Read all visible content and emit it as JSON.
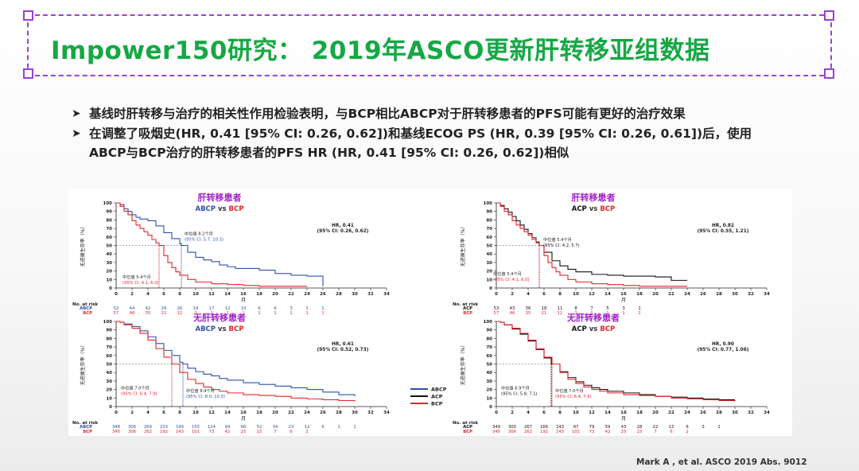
{
  "slide": {
    "title": "Impower150研究： 2019年ASCO更新肝转移亚组数据",
    "bullets": [
      "基线时肝转移与治疗的相关性作用检验表明，与BCP相比ABCP对于肝转移患者的PFS可能有更好的治疗效果",
      "在调整了吸烟史(HR, 0.41 [95% CI: 0.26, 0.62])和基线ECOG PS (HR, 0.39 [95% CI: 0.26, 0.61])后，使用",
      "ABCP与BCP治疗的肝转移患者的PFS HR (HR, 0.41 [95% CI: 0.26, 0.62])相似"
    ],
    "citation": "Mark A , et al.  ASCO 2019 Abs. 9012",
    "colors": {
      "title": "#15a844",
      "frame": "#9b3fd0",
      "abcp": "#2f4fb0",
      "bcp": "#e8242b",
      "acp": "#111111",
      "panel_title": "#a020c8"
    }
  },
  "legend": [
    {
      "name": "ABCP",
      "color": "#2f4fb0"
    },
    {
      "name": "ACP",
      "color": "#111111"
    },
    {
      "name": "BCP",
      "color": "#e8242b"
    }
  ],
  "chart_data": [
    {
      "type": "line",
      "title": "肝转移患者",
      "subtitle": {
        "a": "ABCP",
        "vs": "vs",
        "b": "BCP"
      },
      "xlabel": "月",
      "ylabel": "无进展生存率（%）",
      "xlim": [
        0,
        34
      ],
      "ylim": [
        0,
        100
      ],
      "xticks": [
        0,
        2,
        4,
        6,
        8,
        10,
        12,
        14,
        16,
        18,
        20,
        22,
        24,
        26,
        28,
        30,
        32,
        34
      ],
      "yticks": [
        0,
        10,
        20,
        30,
        40,
        50,
        60,
        70,
        80,
        90,
        100
      ],
      "hr_text": "HR, 0.41",
      "ci_text": "(95% CI: 0.26, 0.62)",
      "annotations": [
        {
          "lines": [
            "中位值 8.2个月",
            "(95% CI: 5.7, 10.3)"
          ],
          "color": "#2f4fb0",
          "x": 8.2
        },
        {
          "lines": [
            "中位值 5.4个月",
            "(95% CI: 4.1, 6.0)"
          ],
          "color": "#e8242b",
          "x": 5.4
        }
      ],
      "series": [
        {
          "name": "ABCP",
          "color": "#2f4fb0",
          "x": [
            0,
            0.5,
            1,
            1.5,
            2,
            2.5,
            3,
            4,
            5,
            6,
            7,
            8,
            8.2,
            9,
            10,
            11,
            12,
            13,
            14,
            15,
            16,
            18,
            20,
            22,
            24,
            25,
            26
          ],
          "y": [
            100,
            98,
            93,
            90,
            86,
            83,
            81,
            79,
            73,
            65,
            58,
            52,
            50,
            42,
            36,
            33,
            31,
            27,
            25,
            23,
            23,
            21,
            17,
            15,
            14,
            14,
            2
          ]
        },
        {
          "name": "BCP",
          "color": "#e8242b",
          "x": [
            0,
            0.5,
            1,
            1.5,
            2,
            2.5,
            3,
            3.5,
            4,
            4.5,
            5,
            5.4,
            6,
            6.5,
            7,
            7.5,
            8,
            9,
            10,
            12,
            14,
            16,
            18,
            20,
            24
          ],
          "y": [
            100,
            96,
            90,
            86,
            79,
            74,
            70,
            66,
            62,
            57,
            53,
            50,
            38,
            30,
            24,
            19,
            15,
            10,
            7,
            5,
            4,
            3,
            2,
            2,
            2
          ]
        }
      ],
      "risk": {
        "label": "No. at risk",
        "rows": [
          {
            "name": "ABCP",
            "color": "#2f4fb0",
            "values": [
              "52",
              "44",
              "42",
              "29",
              "26",
              "19",
              "17",
              "12",
              "10",
              "6",
              "6",
              "3",
              "1",
              "1"
            ]
          },
          {
            "name": "BCP",
            "color": "#e8242b",
            "values": [
              "57",
              "46",
              "35",
              "21",
              "11",
              "3",
              "1",
              "1",
              "1",
              "1",
              "1",
              "1",
              "1",
              "1"
            ]
          }
        ]
      }
    },
    {
      "type": "line",
      "title": "肝转移患者",
      "subtitle": {
        "a": "ACP",
        "vs": "vs",
        "b": "BCP"
      },
      "xlabel": "月",
      "ylabel": "无进展生存率（%）",
      "xlim": [
        0,
        34
      ],
      "ylim": [
        0,
        100
      ],
      "xticks": [
        0,
        2,
        4,
        6,
        8,
        10,
        12,
        14,
        16,
        18,
        20,
        22,
        24,
        26,
        28,
        30,
        32,
        34
      ],
      "yticks": [
        0,
        10,
        20,
        30,
        40,
        50,
        60,
        70,
        80,
        90,
        100
      ],
      "hr_text": "HR, 0.82",
      "ci_text": "(95% CI: 0.55, 1.21)",
      "annotations": [
        {
          "lines": [
            "中位值 5.4个月",
            "(95% CI: 4.2, 5.7)"
          ],
          "color": "#111111",
          "x": 5.4
        },
        {
          "lines": [
            "中位值 5.4个月",
            "(95% CI: 4.1, 6.0)"
          ],
          "color": "#e8242b",
          "x": 5.4
        }
      ],
      "series": [
        {
          "name": "ACP",
          "color": "#111111",
          "x": [
            0,
            0.5,
            1,
            1.5,
            2,
            2.5,
            3,
            3.5,
            4,
            4.5,
            5,
            5.4,
            6,
            7,
            8,
            9,
            10,
            12,
            14,
            16,
            18,
            20,
            22,
            24
          ],
          "y": [
            100,
            97,
            93,
            89,
            84,
            79,
            74,
            69,
            64,
            59,
            54,
            50,
            42,
            32,
            26,
            22,
            19,
            16,
            15,
            14,
            14,
            13,
            9,
            9
          ]
        },
        {
          "name": "BCP",
          "color": "#e8242b",
          "x": [
            0,
            0.5,
            1,
            1.5,
            2,
            2.5,
            3,
            3.5,
            4,
            4.5,
            5,
            5.4,
            6,
            6.5,
            7,
            7.5,
            8,
            9,
            10,
            12,
            14,
            16,
            18,
            20,
            24
          ],
          "y": [
            100,
            96,
            90,
            86,
            79,
            74,
            70,
            66,
            62,
            57,
            53,
            50,
            38,
            30,
            24,
            19,
            15,
            10,
            7,
            5,
            4,
            3,
            2,
            2,
            2
          ]
        }
      ],
      "risk": {
        "label": "No. at risk",
        "rows": [
          {
            "name": "ACP",
            "color": "#111111",
            "values": [
              "53",
              "43",
              "36",
              "18",
              "11",
              "8",
              "7",
              "5",
              "3",
              "1"
            ]
          },
          {
            "name": "BCP",
            "color": "#e8242b",
            "values": [
              "57",
              "46",
              "35",
              "21",
              "11",
              "3",
              "1",
              "1",
              "1",
              "1"
            ]
          }
        ]
      }
    },
    {
      "type": "line",
      "title": "无肝转移患者",
      "subtitle": {
        "a": "ABCP",
        "vs": "vs",
        "b": "BCP"
      },
      "xlabel": "月",
      "ylabel": "无进展生存率（%）",
      "xlim": [
        0,
        34
      ],
      "ylim": [
        0,
        100
      ],
      "xticks": [
        0,
        2,
        4,
        6,
        8,
        10,
        12,
        14,
        16,
        18,
        20,
        22,
        24,
        26,
        28,
        30,
        32,
        34
      ],
      "yticks": [
        0,
        10,
        20,
        30,
        40,
        50,
        60,
        70,
        80,
        90,
        100
      ],
      "hr_text": "HR, 0.61",
      "ci_text": "(95% CI: 0.52, 0.73)",
      "annotations": [
        {
          "lines": [
            "中位值 7.0个月",
            "(95% CI: 6.4, 7.9)"
          ],
          "color": "#e8242b",
          "x": 7.0
        },
        {
          "lines": [
            "中位值 8.4个月",
            "(95% CI: 8.0, 10.3)"
          ],
          "color": "#2f4fb0",
          "x": 8.4
        }
      ],
      "series": [
        {
          "name": "ABCP",
          "color": "#2f4fb0",
          "x": [
            0,
            0.5,
            1,
            2,
            3,
            4,
            5,
            6,
            7,
            8,
            8.4,
            9,
            10,
            11,
            12,
            13,
            14,
            16,
            18,
            20,
            22,
            24,
            26,
            28,
            30
          ],
          "y": [
            100,
            99,
            97,
            94,
            89,
            82,
            74,
            66,
            60,
            52,
            50,
            45,
            41,
            38,
            36,
            33,
            31,
            28,
            26,
            24,
            22,
            20,
            17,
            14,
            12
          ]
        },
        {
          "name": "BCP",
          "color": "#e8242b",
          "x": [
            0,
            0.5,
            1,
            2,
            3,
            4,
            5,
            6,
            7,
            8,
            9,
            10,
            11,
            12,
            13,
            14,
            16,
            18,
            20,
            22,
            24,
            26,
            28,
            30
          ],
          "y": [
            100,
            99,
            96,
            92,
            86,
            78,
            68,
            58,
            50,
            40,
            32,
            27,
            23,
            20,
            18,
            16,
            14,
            13,
            12,
            10,
            9,
            8,
            7,
            6
          ]
        }
      ],
      "risk": {
        "label": "No. at risk",
        "rows": [
          {
            "name": "ABCP",
            "color": "#2f4fb0",
            "values": [
              "348",
              "306",
              "264",
              "233",
              "189",
              "155",
              "124",
              "94",
              "66",
              "52",
              "34",
              "23",
              "12",
              "6",
              "1",
              "1"
            ]
          },
          {
            "name": "BCP",
            "color": "#e8242b",
            "values": [
              "345",
              "306",
              "262",
              "192",
              "143",
              "101",
              "73",
              "42",
              "25",
              "15",
              "7",
              "6",
              "2"
            ]
          }
        ]
      }
    },
    {
      "type": "line",
      "title": "无肝转移患者",
      "subtitle": {
        "a": "ACP",
        "vs": "vs",
        "b": "BCP"
      },
      "xlabel": "月",
      "ylabel": "无进展生存率（%）",
      "xlim": [
        0,
        34
      ],
      "ylim": [
        0,
        100
      ],
      "xticks": [
        0,
        2,
        4,
        6,
        8,
        10,
        12,
        14,
        16,
        18,
        20,
        22,
        24,
        26,
        28,
        30,
        32,
        34
      ],
      "yticks": [
        0,
        10,
        20,
        30,
        40,
        50,
        60,
        70,
        80,
        90,
        100
      ],
      "hr_text": "HR, 0.90",
      "ci_text": "(95% CI: 0.77, 1.06)",
      "annotations": [
        {
          "lines": [
            "中位值 6.9个月",
            "(95% CI: 5.8, 7.1)"
          ],
          "color": "#111111",
          "x": 6.9
        },
        {
          "lines": [
            "中位值 7.0个月",
            "(95% CI: 6.4, 7.9)"
          ],
          "color": "#e8242b",
          "x": 7.0
        }
      ],
      "series": [
        {
          "name": "ACP",
          "color": "#111111",
          "x": [
            0,
            0.5,
            1,
            2,
            3,
            4,
            5,
            6,
            6.9,
            8,
            9,
            10,
            11,
            12,
            13,
            14,
            16,
            18,
            20,
            22,
            24,
            26,
            28,
            30
          ],
          "y": [
            100,
            99,
            96,
            91,
            85,
            77,
            67,
            57,
            50,
            41,
            34,
            29,
            25,
            22,
            20,
            18,
            16,
            14,
            12,
            11,
            10,
            9,
            8,
            8
          ]
        },
        {
          "name": "BCP",
          "color": "#e8242b",
          "x": [
            0,
            0.5,
            1,
            2,
            3,
            4,
            5,
            6,
            7,
            8,
            9,
            10,
            11,
            12,
            13,
            14,
            16,
            18,
            20,
            22,
            24,
            26,
            28,
            30
          ],
          "y": [
            100,
            99,
            96,
            92,
            86,
            78,
            68,
            58,
            50,
            40,
            32,
            27,
            23,
            20,
            18,
            16,
            14,
            13,
            12,
            10,
            9,
            8,
            7,
            6
          ]
        }
      ],
      "risk": {
        "label": "No. at risk",
        "rows": [
          {
            "name": "ACP",
            "color": "#111111",
            "values": [
              "349",
              "300",
              "267",
              "166",
              "143",
              "97",
              "79",
              "59",
              "43",
              "28",
              "22",
              "13",
              "6",
              "3",
              "1"
            ]
          },
          {
            "name": "BCP",
            "color": "#e8242b",
            "values": [
              "345",
              "306",
              "262",
              "192",
              "143",
              "101",
              "73",
              "42",
              "25",
              "15",
              "7",
              "6",
              "2"
            ]
          }
        ]
      }
    }
  ]
}
